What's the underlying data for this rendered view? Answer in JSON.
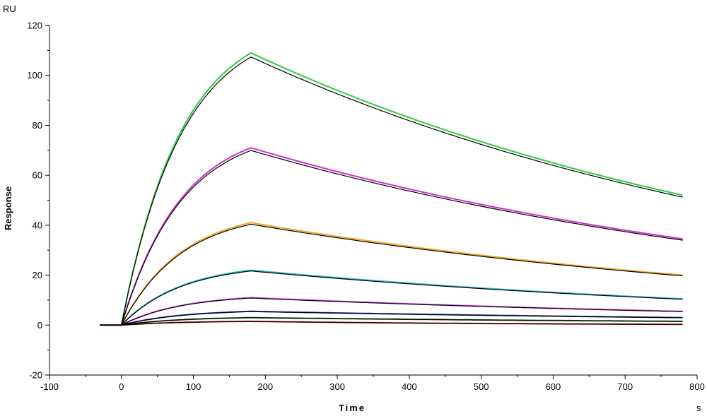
{
  "chart_data": {
    "type": "line",
    "y_unit": "RU",
    "x_unit": "s",
    "xlabel": "Time",
    "ylabel": "Response",
    "xlim": [
      -100,
      800
    ],
    "ylim": [
      -20,
      120
    ],
    "x_ticks": [
      -100,
      0,
      100,
      200,
      300,
      400,
      500,
      600,
      700,
      800
    ],
    "y_ticks": [
      -20,
      0,
      20,
      40,
      60,
      80,
      100,
      120
    ],
    "grid": false,
    "legend": "none",
    "association_end": 180,
    "dissociation_end": 780,
    "series": [
      {
        "color": "#2ecc40",
        "fit_color": "#000000",
        "peak": 109,
        "end": 52
      },
      {
        "color": "#cc33cc",
        "fit_color": "#000000",
        "peak": 71,
        "end": 34.5
      },
      {
        "color": "#f5a623",
        "fit_color": "#000000",
        "peak": 41,
        "end": 20
      },
      {
        "color": "#2bb8c8",
        "fit_color": "#000000",
        "peak": 22,
        "end": 10.5
      },
      {
        "color": "#e040fb",
        "fit_color": "#000000",
        "peak": 11,
        "end": 5.5
      },
      {
        "color": "#1f3fbf",
        "fit_color": "#000000",
        "peak": 5.5,
        "end": 3
      },
      {
        "color": "#2e7d32",
        "fit_color": "#000000",
        "peak": 3,
        "end": 1.5
      },
      {
        "color": "#e41a1c",
        "fit_color": "#000000",
        "peak": 1.5,
        "end": 0.3
      }
    ]
  }
}
